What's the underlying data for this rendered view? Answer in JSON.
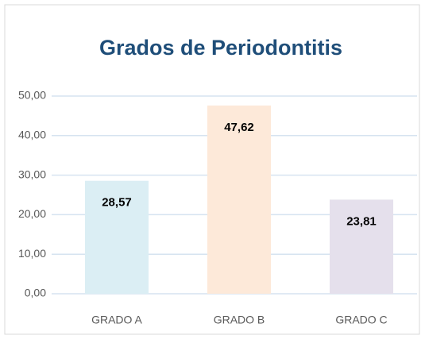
{
  "chart_data": {
    "type": "bar",
    "title": "Grados de Periodontitis",
    "categories": [
      "GRADO A",
      "GRADO B",
      "GRADO C"
    ],
    "values": [
      28.57,
      47.62,
      23.81
    ],
    "value_labels": [
      "28,57",
      "47,62",
      "23,81"
    ],
    "colors": [
      "#dbeef4",
      "#fde9d9",
      "#e5e0ec"
    ],
    "ylim": [
      0,
      50
    ],
    "yticks": [
      {
        "value": 0,
        "label": "0,00"
      },
      {
        "value": 10,
        "label": "10,00"
      },
      {
        "value": 20,
        "label": "20,00"
      },
      {
        "value": 30,
        "label": "30,00"
      },
      {
        "value": 40,
        "label": "40,00"
      },
      {
        "value": 50,
        "label": "50,00"
      }
    ],
    "grid": true
  }
}
